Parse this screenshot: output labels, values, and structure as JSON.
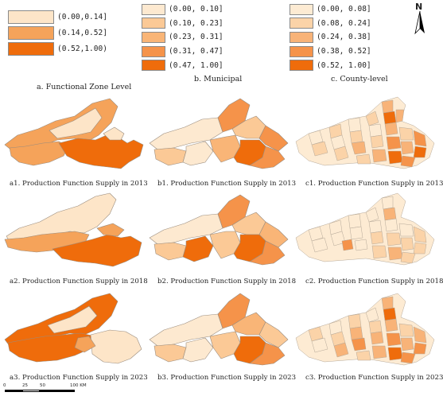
{
  "legends": {
    "a": {
      "title": "a.  Functional Zone Level",
      "classes": [
        {
          "label": "(0.00,0.14]",
          "color": "#fde5c8"
        },
        {
          "label": "(0.14,0.52]",
          "color": "#f5a35a"
        },
        {
          "label": "(0.52,1.00)",
          "color": "#ef6c0b"
        }
      ]
    },
    "b": {
      "title": "b.  Municipal",
      "classes": [
        {
          "label": "(0.00, 0.10]",
          "color": "#fde9d0"
        },
        {
          "label": "(0.10, 0.23]",
          "color": "#fbc996"
        },
        {
          "label": "(0.23, 0.31]",
          "color": "#f9b577"
        },
        {
          "label": "(0.31, 0.47]",
          "color": "#f5934a"
        },
        {
          "label": "(0.47, 1.00]",
          "color": "#ef6c0b"
        }
      ]
    },
    "c": {
      "title": "c.  County-level",
      "classes": [
        {
          "label": "(0.00, 0.08]",
          "color": "#fdebd3"
        },
        {
          "label": "(0.08, 0.24]",
          "color": "#fbd3a8"
        },
        {
          "label": "(0.24, 0.38]",
          "color": "#f8b378"
        },
        {
          "label": "(0.38, 0.52]",
          "color": "#f5934a"
        },
        {
          "label": "(0.52, 1.00]",
          "color": "#ef6c0b"
        }
      ]
    }
  },
  "maps": [
    {
      "id": "a1",
      "caption": "a1.  Production Function Supply in 2013"
    },
    {
      "id": "b1",
      "caption": "b1.  Production Function Supply in 2013"
    },
    {
      "id": "c1",
      "caption": "c1.  Production Function Supply in 2013"
    },
    {
      "id": "a2",
      "caption": "a2.  Production Function Supply in 2018"
    },
    {
      "id": "b2",
      "caption": "b2.  Production Function Supply in 2018"
    },
    {
      "id": "c2",
      "caption": "c2.  Production Function Supply in 2018"
    },
    {
      "id": "a3",
      "caption": "a3.  Production Function Supply in 2023"
    },
    {
      "id": "b3",
      "caption": "b3.  Production Function Supply in 2023"
    },
    {
      "id": "c3",
      "caption": "c3.  Production Function Supply in 2023"
    }
  ],
  "scale_bar": {
    "ticks": [
      "0",
      "25",
      "50",
      "100 KM"
    ]
  },
  "north_arrow": {
    "letter": "N"
  }
}
